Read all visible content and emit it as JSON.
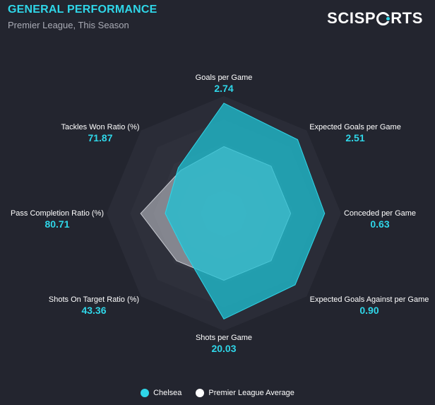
{
  "header": {
    "title": "GENERAL PERFORMANCE",
    "subtitle": "Premier League, This Season",
    "logo_text": "SCISPORTS"
  },
  "colors": {
    "background": "#23252f",
    "accent": "#2fd6e8",
    "team_fill": "#1fc3d6",
    "average_fill": "#c8cad1"
  },
  "chart_data": {
    "type": "radar",
    "title": "GENERAL PERFORMANCE",
    "subtitle": "Premier League, This Season",
    "axes": [
      {
        "name": "Goals per Game",
        "value": "2.74"
      },
      {
        "name": "Expected Goals per Game",
        "value": "2.51"
      },
      {
        "name": "Conceded per Game",
        "value": "0.63"
      },
      {
        "name": "Expected Goals Against per Game",
        "value": "0.90"
      },
      {
        "name": "Shots per Game",
        "value": "20.03"
      },
      {
        "name": "Shots On Target Ratio (%)",
        "value": "43.36"
      },
      {
        "name": "Pass Completion Ratio (%)",
        "value": "80.71"
      },
      {
        "name": "Tackles Won Ratio (%)",
        "value": "71.87"
      }
    ],
    "series": [
      {
        "name": "Chelsea",
        "color": "#1fc3d6",
        "relative_values": [
          0.94,
          0.89,
          0.86,
          0.86,
          0.9,
          0.47,
          0.5,
          0.55
        ]
      },
      {
        "name": "Premier League Average",
        "color": "#c8cad1",
        "relative_values": [
          0.57,
          0.57,
          0.57,
          0.57,
          0.57,
          0.57,
          0.71,
          0.52
        ]
      }
    ],
    "rings": 5,
    "legend_position": "bottom-center"
  },
  "legend": [
    {
      "label": "Chelsea",
      "color": "#2fd6e8"
    },
    {
      "label": "Premier League Average",
      "color": "#ffffff"
    }
  ]
}
